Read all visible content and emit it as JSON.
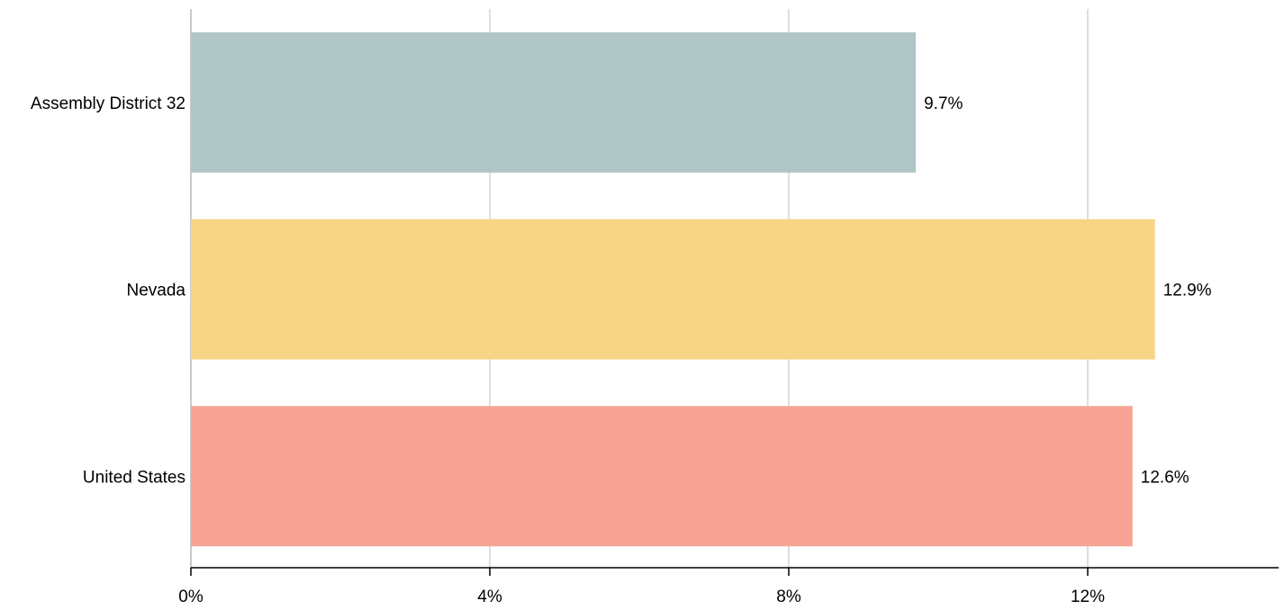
{
  "chart_data": {
    "type": "bar",
    "orientation": "horizontal",
    "categories": [
      "Assembly District 32",
      "Nevada",
      "United States"
    ],
    "values": [
      9.7,
      12.9,
      12.6
    ],
    "value_labels": [
      "9.7%",
      "12.9%",
      "12.6%"
    ],
    "colors": [
      "#b0c6c6",
      "#f7d486",
      "#f7a496"
    ],
    "xlim": [
      0,
      14.5
    ],
    "xticks": [
      0,
      4,
      8,
      12
    ],
    "xtick_labels": [
      "0%",
      "4%",
      "8%",
      "12%"
    ],
    "grid": true,
    "title": "",
    "xlabel": "",
    "ylabel": ""
  }
}
